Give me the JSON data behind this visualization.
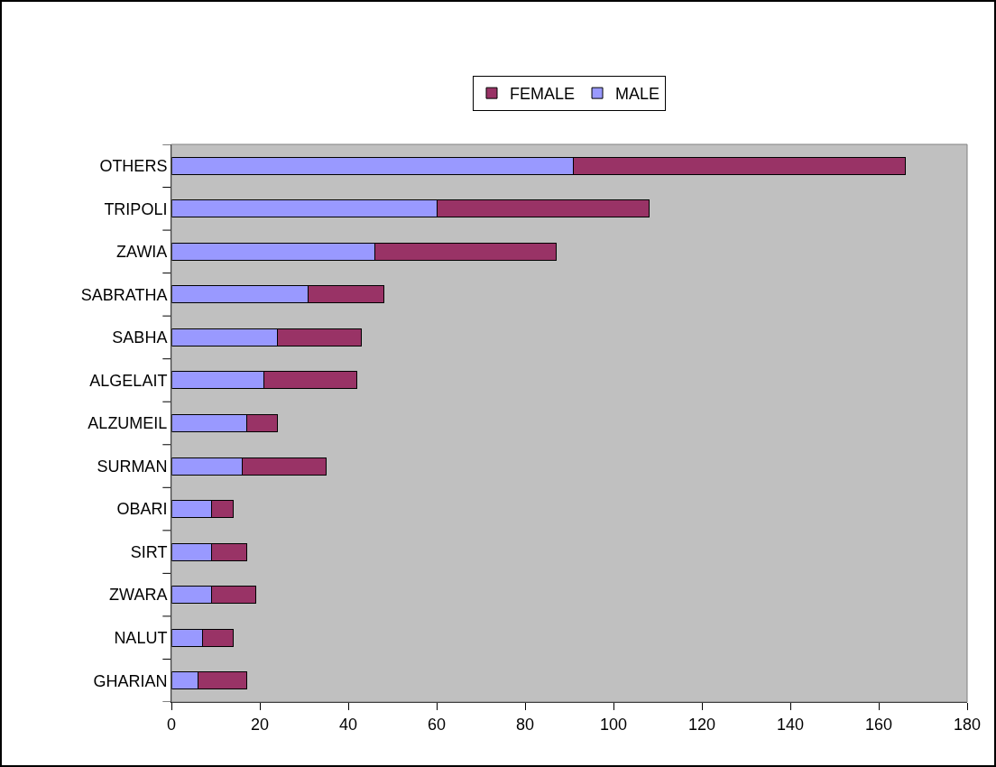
{
  "chart_data": {
    "type": "bar",
    "orientation": "horizontal",
    "stacked": true,
    "categories": [
      "OTHERS",
      "TRIPOLI",
      "ZAWIA",
      "SABRATHA",
      "SABHA",
      "ALGELAIT",
      "ALZUMEIL",
      "SURMAN",
      "OBARI",
      "SIRT",
      "ZWARA",
      "NALUT",
      "GHARIAN"
    ],
    "series": [
      {
        "name": "MALE",
        "color": "#9999ff",
        "values": [
          91,
          60,
          46,
          31,
          24,
          21,
          17,
          16,
          9,
          9,
          9,
          7,
          6
        ]
      },
      {
        "name": "FEMALE",
        "color": "#993366",
        "values": [
          75,
          48,
          41,
          17,
          19,
          21,
          7,
          19,
          5,
          8,
          10,
          7,
          11
        ]
      }
    ],
    "xlim": [
      0,
      180
    ],
    "xticks": [
      0,
      20,
      40,
      60,
      80,
      100,
      120,
      140,
      160,
      180
    ],
    "grid": false,
    "legend": "top"
  }
}
